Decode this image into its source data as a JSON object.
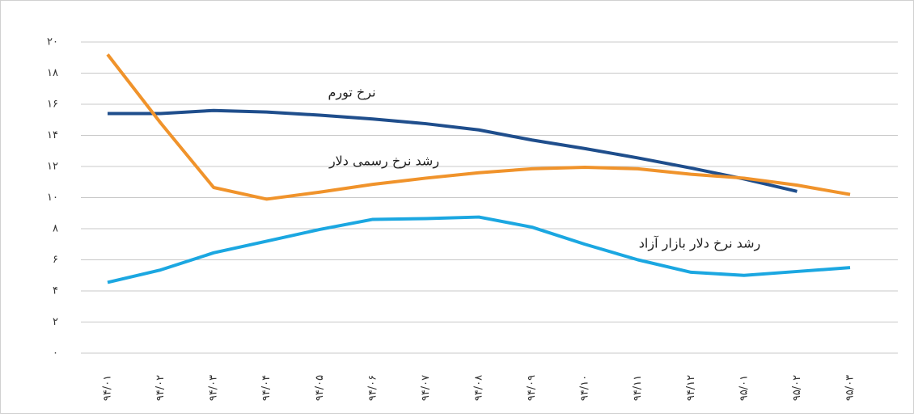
{
  "chart_data": {
    "type": "line",
    "categories": [
      "۹۴/۰۱",
      "۹۴/۰۲",
      "۹۴/۰۳",
      "۹۴/۰۴",
      "۹۴/۰۵",
      "۹۴/۰۶",
      "۹۴/۰۷",
      "۹۴/۰۸",
      "۹۴/۰۹",
      "۹۴/۱۰",
      "۹۴/۱۱",
      "۹۴/۱۲",
      "۹۵/۰۱",
      "۹۵/۰۲",
      "۹۵/۰۳"
    ],
    "series": [
      {
        "name": "نرخ تورم",
        "color": "#1f4e8c",
        "values": [
          15.4,
          15.4,
          15.6,
          15.5,
          15.3,
          15.05,
          14.75,
          14.35,
          13.7,
          13.15,
          12.55,
          11.9,
          11.2,
          10.4,
          null
        ]
      },
      {
        "name": "رشد نرخ رسمی دلار",
        "color": "#f0932b",
        "values": [
          19.2,
          14.8,
          10.65,
          9.9,
          10.35,
          10.85,
          11.25,
          11.6,
          11.85,
          11.95,
          11.85,
          11.5,
          11.25,
          10.8,
          10.2
        ]
      },
      {
        "name": "رشد نرخ دلار بازار آزاد",
        "color": "#1ba7e1",
        "values": [
          4.55,
          5.35,
          6.45,
          7.2,
          7.95,
          8.6,
          8.65,
          8.75,
          8.1,
          7.0,
          6.0,
          5.2,
          5.0,
          5.25,
          5.5
        ]
      }
    ],
    "ylim": [
      0,
      20
    ],
    "yticks": [
      {
        "value": 0,
        "label": "۰"
      },
      {
        "value": 2,
        "label": "۲"
      },
      {
        "value": 4,
        "label": "۴"
      },
      {
        "value": 6,
        "label": "۶"
      },
      {
        "value": 8,
        "label": "۸"
      },
      {
        "value": 10,
        "label": "۱۰"
      },
      {
        "value": 12,
        "label": "۱۲"
      },
      {
        "value": 14,
        "label": "۱۴"
      },
      {
        "value": 16,
        "label": "۱۶"
      },
      {
        "value": 18,
        "label": "۱۸"
      },
      {
        "value": 20,
        "label": "۲۰"
      }
    ],
    "grid": true
  }
}
